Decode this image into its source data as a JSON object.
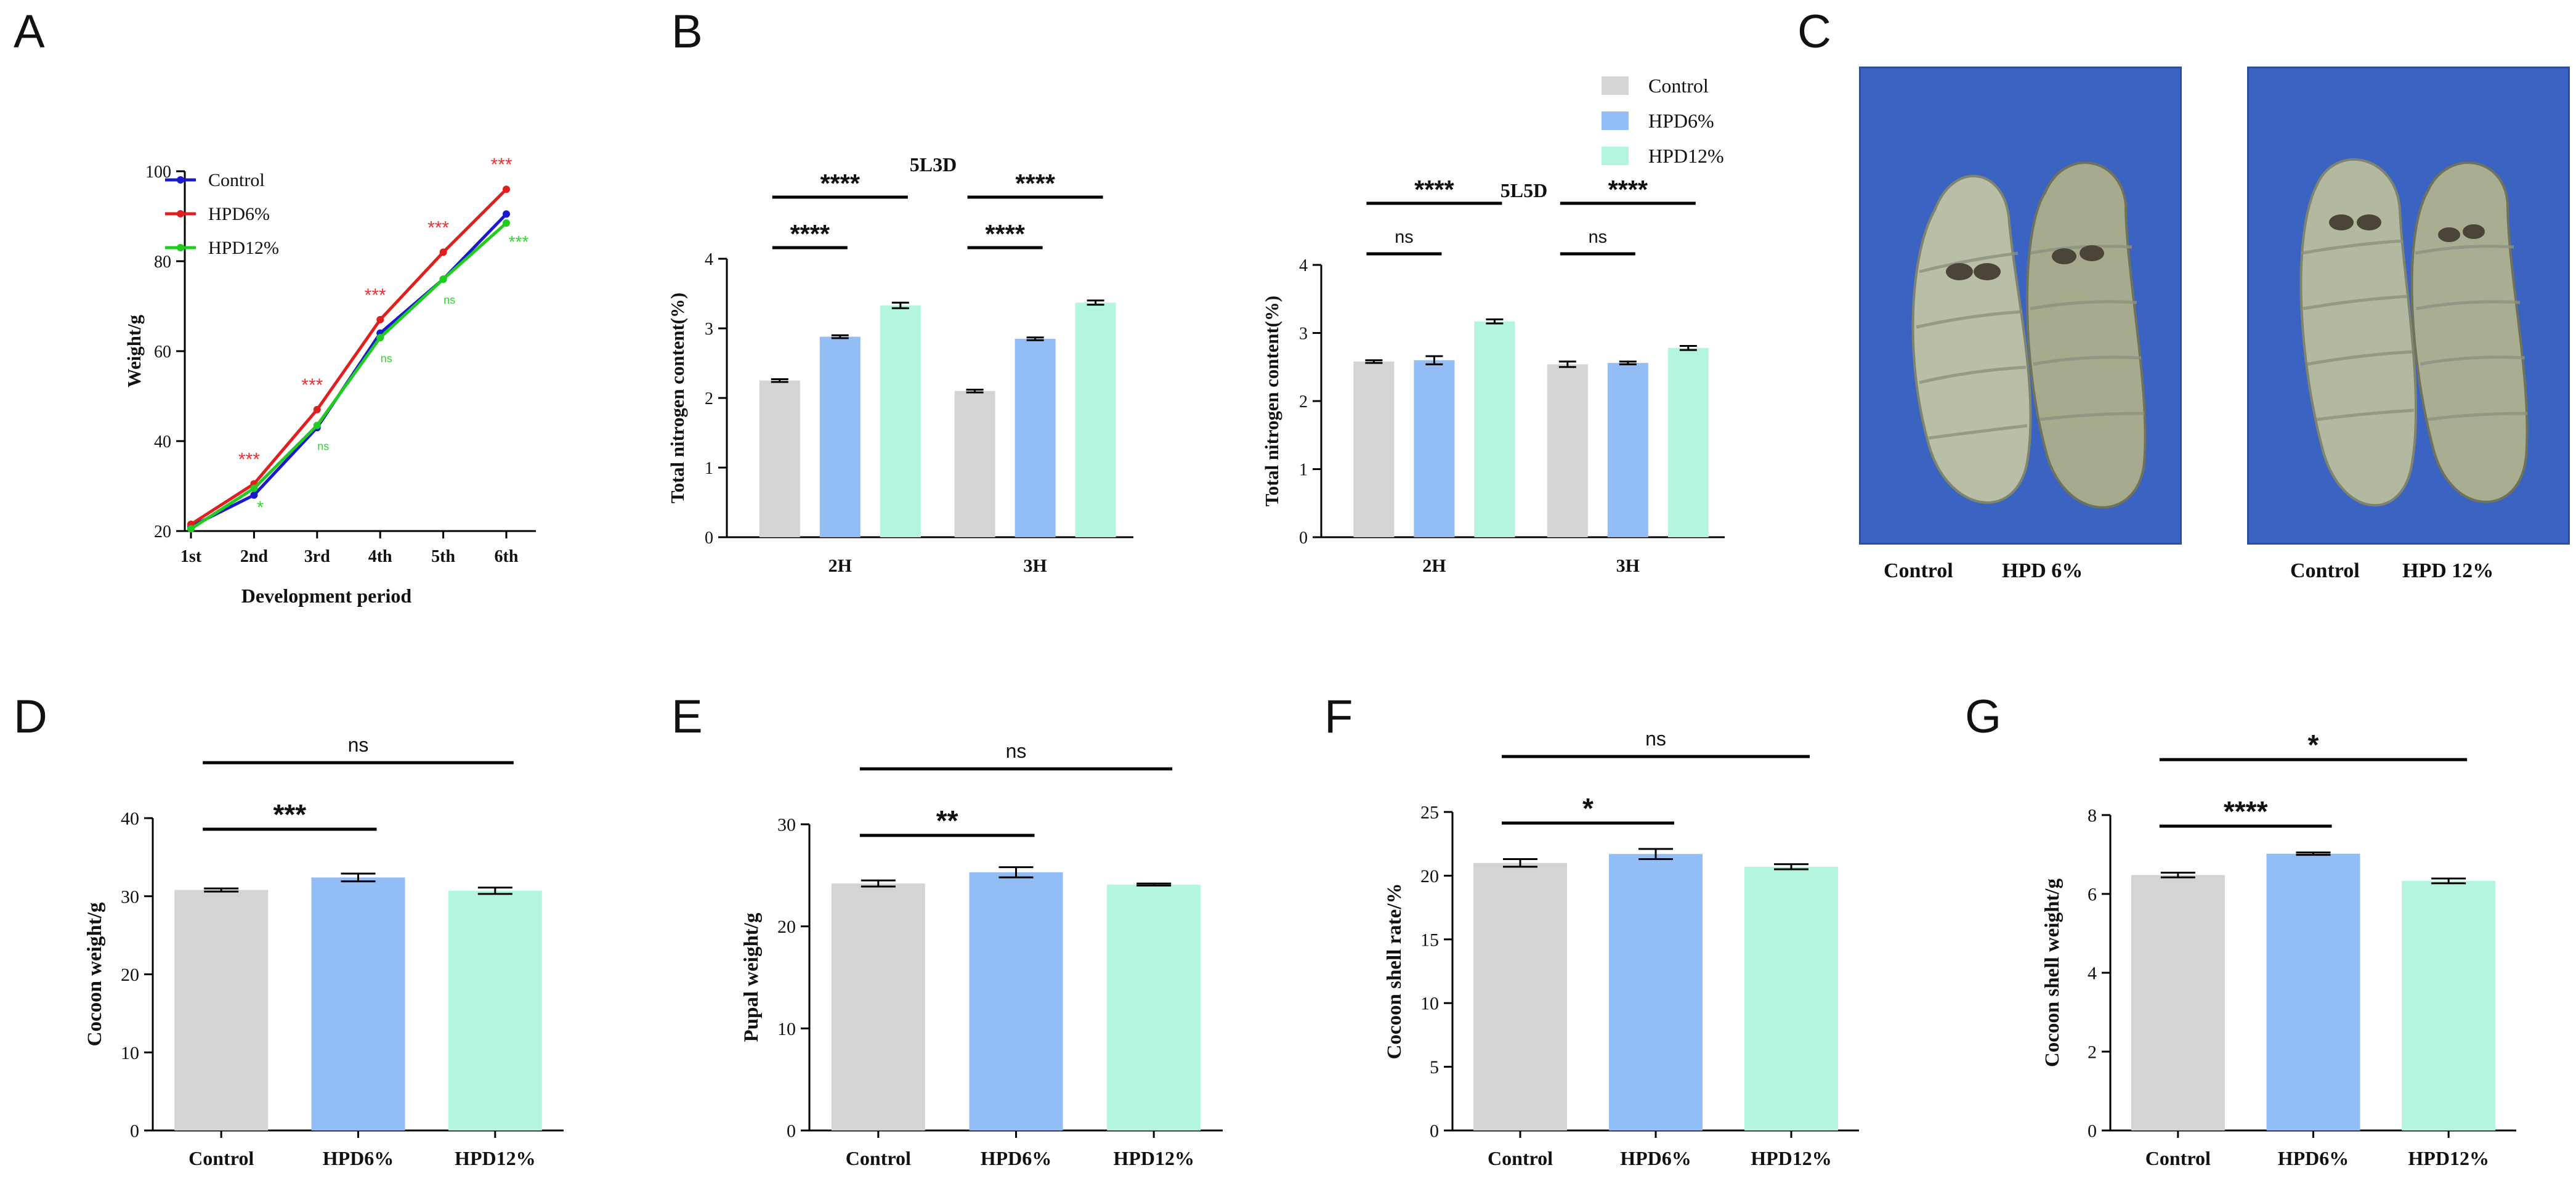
{
  "letters": [
    "A",
    "B",
    "C",
    "D",
    "E",
    "F",
    "G"
  ],
  "colors": {
    "control": "#d4d4d4",
    "hpd6": "#93bdf5",
    "hpd12": "#b3f5df",
    "lineControl": "#1a1acc",
    "lineHpd6": "#e01f1f",
    "lineHpd12": "#1fcc1f",
    "sigRed": "#f03030",
    "sigGreen": "#2adb2a",
    "photoBg": "#3a63c2",
    "caterpillar": "#b8bfa8"
  },
  "legendB": [
    "Control",
    "HPD6%",
    "HPD12%"
  ],
  "photo": {
    "left_captions": [
      "Control",
      "HPD 6%"
    ],
    "right_captions": [
      "Control",
      "HPD 12%"
    ]
  },
  "chart_data": [
    {
      "id": "A",
      "type": "line",
      "xlabel": "Development period",
      "ylabel": "Weight/g",
      "categories": [
        "1st",
        "2nd",
        "3rd",
        "4th",
        "5th",
        "6th"
      ],
      "ylim": [
        20,
        100
      ],
      "yticks": [
        "20",
        "40",
        "60",
        "80",
        "100"
      ],
      "legend": [
        "Control",
        "HPD6%",
        "HPD12%"
      ],
      "series": [
        {
          "name": "Control",
          "values": [
            21,
            28,
            43,
            64,
            76,
            90.5
          ]
        },
        {
          "name": "HPD6%",
          "values": [
            21.5,
            30.5,
            47,
            67,
            82,
            96
          ]
        },
        {
          "name": "HPD12%",
          "values": [
            20.5,
            29.5,
            43.5,
            63,
            76,
            88.5
          ]
        }
      ],
      "annotations_red": [
        "***",
        "***",
        "***",
        "***",
        "***"
      ],
      "annotations_green": [
        "*",
        "ns",
        "ns",
        "ns",
        "***"
      ]
    },
    {
      "id": "B1",
      "type": "bar",
      "title": "5L3D",
      "ylabel": "Total nitrogen content(%)",
      "groups": [
        "2H",
        "3H"
      ],
      "ylim": [
        0,
        4
      ],
      "yticks": [
        "0",
        "1",
        "2",
        "3",
        "4"
      ],
      "series": [
        {
          "name": "Control",
          "values": [
            2.25,
            2.1
          ]
        },
        {
          "name": "HPD6%",
          "values": [
            2.88,
            2.85
          ]
        },
        {
          "name": "HPD12%",
          "values": [
            3.33,
            3.37
          ]
        }
      ],
      "errors": [
        [
          0.02,
          0.02
        ],
        [
          0.02,
          0.02
        ],
        [
          0.04,
          0.03
        ]
      ],
      "sig_short": [
        "****",
        "****"
      ],
      "sig_long": [
        "****",
        "****"
      ]
    },
    {
      "id": "B2",
      "type": "bar",
      "title": "5L5D",
      "ylabel": "Total nitrogen content(%)",
      "groups": [
        "2H",
        "3H"
      ],
      "ylim": [
        0,
        4
      ],
      "yticks": [
        "0",
        "1",
        "2",
        "3",
        "4"
      ],
      "series": [
        {
          "name": "Control",
          "values": [
            2.58,
            2.54
          ]
        },
        {
          "name": "HPD6%",
          "values": [
            2.6,
            2.56
          ]
        },
        {
          "name": "HPD12%",
          "values": [
            3.17,
            2.78
          ]
        }
      ],
      "errors": [
        [
          0.02,
          0.04
        ],
        [
          0.06,
          0.02
        ],
        [
          0.03,
          0.03
        ]
      ],
      "sig_short": [
        "ns",
        "ns"
      ],
      "sig_long": [
        "****",
        "****"
      ]
    },
    {
      "id": "D",
      "type": "bar",
      "ylabel": "Cocoon weight/g",
      "categories": [
        "Control",
        "HPD6%",
        "HPD12%"
      ],
      "values": [
        30.8,
        32.4,
        30.7
      ],
      "errors": [
        0.2,
        0.5,
        0.4
      ],
      "ylim": [
        0,
        40
      ],
      "yticks": [
        "0",
        "10",
        "20",
        "30",
        "40"
      ],
      "sig_short": "***",
      "sig_long": "ns"
    },
    {
      "id": "E",
      "type": "bar",
      "ylabel": "Pupal weight/g",
      "categories": [
        "Control",
        "HPD6%",
        "HPD12%"
      ],
      "values": [
        24.2,
        25.3,
        24.1
      ],
      "errors": [
        0.3,
        0.5,
        0.1
      ],
      "ylim": [
        0,
        30
      ],
      "yticks": [
        "0",
        "10",
        "20",
        "30"
      ],
      "sig_short": "**",
      "sig_long": "ns"
    },
    {
      "id": "F",
      "type": "bar",
      "ylabel": "Cocoon shell rate/%",
      "categories": [
        "Control",
        "HPD6%",
        "HPD12%"
      ],
      "values": [
        21.0,
        21.7,
        20.7
      ],
      "errors": [
        0.3,
        0.4,
        0.2
      ],
      "ylim": [
        0,
        25
      ],
      "yticks": [
        "0",
        "5",
        "10",
        "15",
        "20",
        "25"
      ],
      "sig_short": "*",
      "sig_long": "ns"
    },
    {
      "id": "G",
      "type": "bar",
      "ylabel": "Cocoon shell weight/g",
      "categories": [
        "Control",
        "HPD6%",
        "HPD12%"
      ],
      "values": [
        6.48,
        7.02,
        6.33
      ],
      "errors": [
        0.06,
        0.03,
        0.06
      ],
      "ylim": [
        0,
        8
      ],
      "yticks": [
        "0",
        "2",
        "4",
        "6",
        "8"
      ],
      "sig_short": "****",
      "sig_long": "*"
    }
  ]
}
